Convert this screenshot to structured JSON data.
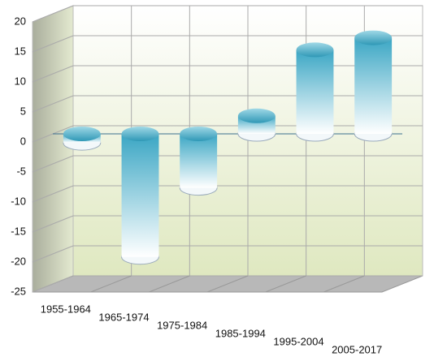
{
  "chart_data": {
    "type": "bar3d",
    "categories": [
      "1955-1964",
      "1965-1974",
      "1975-1984",
      "1985-1994",
      "1995-2004",
      "2005-2017"
    ],
    "values": [
      -1.5,
      -20.5,
      -9,
      3,
      14,
      16
    ],
    "color": "#3aa6c4",
    "ylim": [
      -25,
      20
    ],
    "yticks": [
      -25,
      -20,
      -15,
      -10,
      -5,
      0,
      5,
      10,
      15,
      20
    ],
    "grid": true
  }
}
